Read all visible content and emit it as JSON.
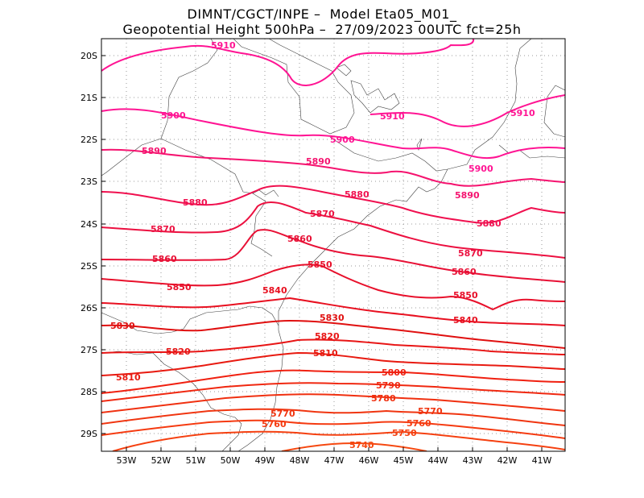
{
  "title": {
    "line1": "DIMNT/CGCT/INPE –  Model Eta05_M01_",
    "line2": "Geopotential Height 500hPa –  27/09/2023 00UTC fct=25h"
  },
  "axes": {
    "lat_labels": [
      "20S",
      "21S",
      "22S",
      "23S",
      "24S",
      "25S",
      "26S",
      "27S",
      "28S",
      "29S"
    ],
    "lon_labels": [
      "53W",
      "52W",
      "51W",
      "50W",
      "49W",
      "48W",
      "47W",
      "46W",
      "45W",
      "44W",
      "43W",
      "42W",
      "41W"
    ]
  },
  "colors": {
    "c5910": "#ff1493",
    "c5900": "#ff1493",
    "c5890": "#f5136f",
    "c5880": "#f0104f",
    "c5870": "#ec1040",
    "c5860": "#e81035",
    "c5850": "#e8102b",
    "c5840": "#e81020",
    "c5830": "#e01010",
    "c5820": "#e81515",
    "c5810": "#e81a10",
    "c5800": "#f02010",
    "c5790": "#f02810",
    "c5780": "#f03010",
    "c5770": "#f03510",
    "c5760": "#f53a10",
    "c5750": "#f54010",
    "c5740": "#f54810",
    "boundary": "#000000"
  },
  "contour_labels": [
    {
      "id": "l5910a",
      "text": "5910"
    },
    {
      "id": "l5910b",
      "text": "5910"
    },
    {
      "id": "l5910c",
      "text": "5910"
    },
    {
      "id": "l5900a",
      "text": "5900"
    },
    {
      "id": "l5900b",
      "text": "5900"
    },
    {
      "id": "l5900c",
      "text": "5900"
    },
    {
      "id": "l5890a",
      "text": "5890"
    },
    {
      "id": "l5890b",
      "text": "5890"
    },
    {
      "id": "l5890c",
      "text": "5890"
    },
    {
      "id": "l5880a",
      "text": "5880"
    },
    {
      "id": "l5880b",
      "text": "5880"
    },
    {
      "id": "l5880c",
      "text": "5880"
    },
    {
      "id": "l5870a",
      "text": "5870"
    },
    {
      "id": "l5870b",
      "text": "5870"
    },
    {
      "id": "l5870c",
      "text": "5870"
    },
    {
      "id": "l5860a",
      "text": "5860"
    },
    {
      "id": "l5860b",
      "text": "5860"
    },
    {
      "id": "l5860c",
      "text": "5860"
    },
    {
      "id": "l5850a",
      "text": "5850"
    },
    {
      "id": "l5850b",
      "text": "5850"
    },
    {
      "id": "l5850c",
      "text": "5850"
    },
    {
      "id": "l5840a",
      "text": "5840"
    },
    {
      "id": "l5840b",
      "text": "5840"
    },
    {
      "id": "l5830a",
      "text": "5830"
    },
    {
      "id": "l5830b",
      "text": "5830"
    },
    {
      "id": "l5820a",
      "text": "5820"
    },
    {
      "id": "l5820b",
      "text": "5820"
    },
    {
      "id": "l5810a",
      "text": "5810"
    },
    {
      "id": "l5810b",
      "text": "5810"
    },
    {
      "id": "l5800a",
      "text": "5800"
    },
    {
      "id": "l5790a",
      "text": "5790"
    },
    {
      "id": "l5780a",
      "text": "5780"
    },
    {
      "id": "l5770a",
      "text": "5770"
    },
    {
      "id": "l5770b",
      "text": "5770"
    },
    {
      "id": "l5760a",
      "text": "5760"
    },
    {
      "id": "l5760b",
      "text": "5760"
    },
    {
      "id": "l5750a",
      "text": "5750"
    },
    {
      "id": "l5740a",
      "text": "5740"
    }
  ]
}
